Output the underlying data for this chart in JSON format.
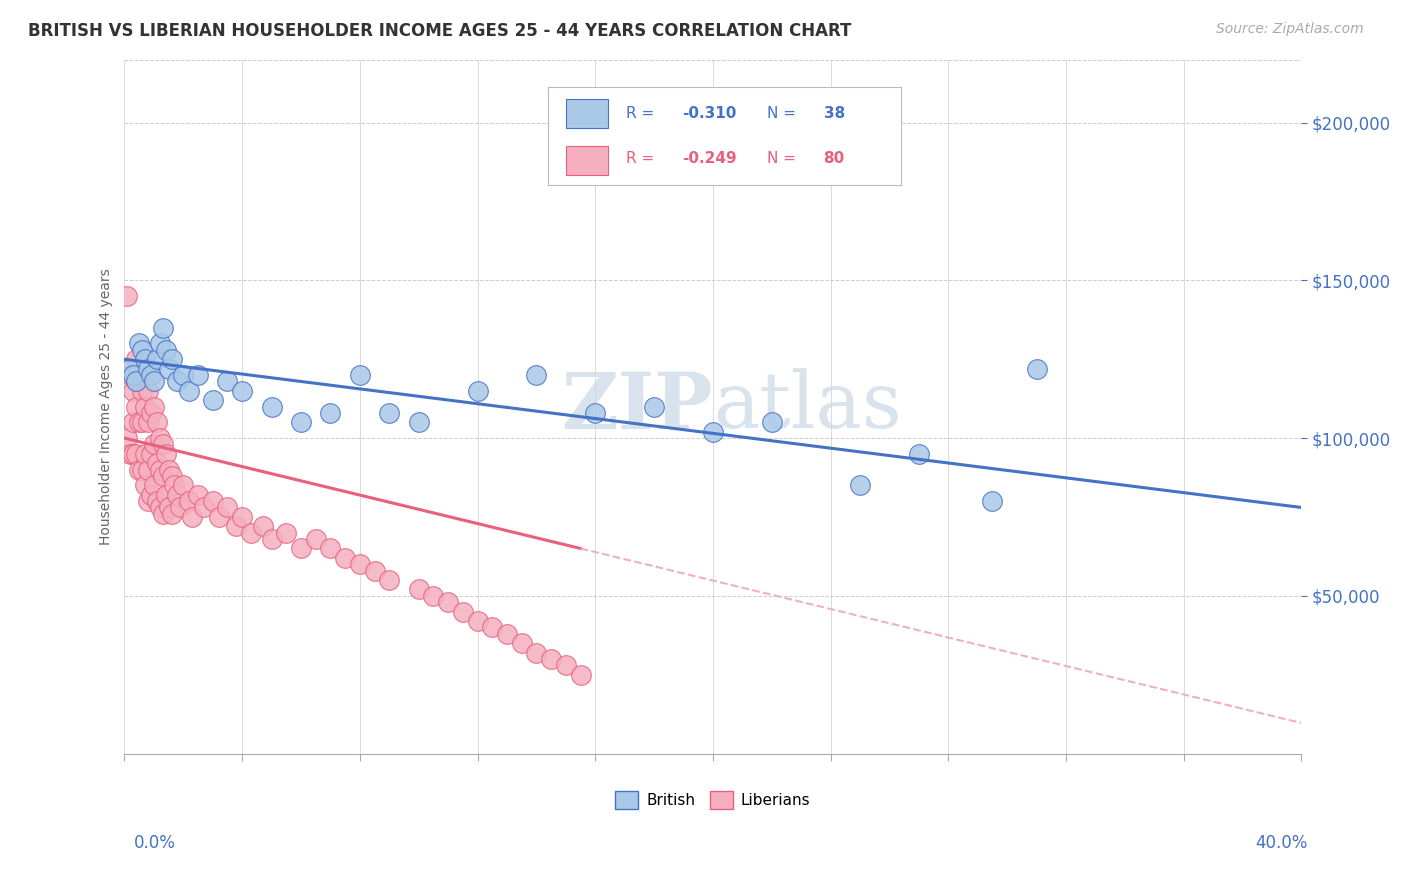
{
  "title": "BRITISH VS LIBERIAN HOUSEHOLDER INCOME AGES 25 - 44 YEARS CORRELATION CHART",
  "source_text": "Source: ZipAtlas.com",
  "ylabel": "Householder Income Ages 25 - 44 years",
  "ytick_labels": [
    "$50,000",
    "$100,000",
    "$150,000",
    "$200,000"
  ],
  "ytick_values": [
    50000,
    100000,
    150000,
    200000
  ],
  "ylim": [
    0,
    220000
  ],
  "xlim": [
    0.0,
    0.4
  ],
  "british_R": "-0.310",
  "british_N": "38",
  "liberian_R": "-0.249",
  "liberian_N": "80",
  "british_color": "#aac8e8",
  "liberian_color": "#f5afc0",
  "british_line_color": "#4472c4",
  "liberian_line_color": "#e8607a",
  "liberian_dash_color": "#f0b0c0",
  "watermark_color": "#c8d8e8",
  "british_x": [
    0.002,
    0.003,
    0.004,
    0.005,
    0.006,
    0.007,
    0.008,
    0.009,
    0.01,
    0.011,
    0.012,
    0.013,
    0.014,
    0.015,
    0.016,
    0.018,
    0.02,
    0.022,
    0.025,
    0.03,
    0.035,
    0.04,
    0.05,
    0.06,
    0.07,
    0.08,
    0.09,
    0.1,
    0.12,
    0.14,
    0.16,
    0.18,
    0.2,
    0.22,
    0.25,
    0.27,
    0.295,
    0.31
  ],
  "british_y": [
    122000,
    120000,
    118000,
    130000,
    128000,
    125000,
    122000,
    120000,
    118000,
    125000,
    130000,
    135000,
    128000,
    122000,
    125000,
    118000,
    120000,
    115000,
    120000,
    112000,
    118000,
    115000,
    110000,
    105000,
    108000,
    120000,
    108000,
    105000,
    115000,
    120000,
    108000,
    110000,
    102000,
    105000,
    85000,
    95000,
    80000,
    122000
  ],
  "liberian_x": [
    0.001,
    0.001,
    0.002,
    0.002,
    0.003,
    0.003,
    0.003,
    0.004,
    0.004,
    0.004,
    0.005,
    0.005,
    0.005,
    0.006,
    0.006,
    0.006,
    0.007,
    0.007,
    0.007,
    0.008,
    0.008,
    0.008,
    0.008,
    0.009,
    0.009,
    0.009,
    0.01,
    0.01,
    0.01,
    0.011,
    0.011,
    0.011,
    0.012,
    0.012,
    0.012,
    0.013,
    0.013,
    0.013,
    0.014,
    0.014,
    0.015,
    0.015,
    0.016,
    0.016,
    0.017,
    0.018,
    0.019,
    0.02,
    0.022,
    0.023,
    0.025,
    0.027,
    0.03,
    0.032,
    0.035,
    0.038,
    0.04,
    0.043,
    0.047,
    0.05,
    0.055,
    0.06,
    0.065,
    0.07,
    0.075,
    0.08,
    0.085,
    0.09,
    0.1,
    0.105,
    0.11,
    0.115,
    0.12,
    0.125,
    0.13,
    0.135,
    0.14,
    0.145,
    0.15,
    0.155
  ],
  "liberian_y": [
    145000,
    100000,
    120000,
    95000,
    115000,
    105000,
    95000,
    125000,
    110000,
    95000,
    120000,
    105000,
    90000,
    115000,
    105000,
    90000,
    110000,
    95000,
    85000,
    115000,
    105000,
    90000,
    80000,
    108000,
    95000,
    82000,
    110000,
    98000,
    85000,
    105000,
    92000,
    80000,
    100000,
    90000,
    78000,
    98000,
    88000,
    76000,
    95000,
    82000,
    90000,
    78000,
    88000,
    76000,
    85000,
    82000,
    78000,
    85000,
    80000,
    75000,
    82000,
    78000,
    80000,
    75000,
    78000,
    72000,
    75000,
    70000,
    72000,
    68000,
    70000,
    65000,
    68000,
    65000,
    62000,
    60000,
    58000,
    55000,
    52000,
    50000,
    48000,
    45000,
    42000,
    40000,
    38000,
    35000,
    32000,
    30000,
    28000,
    25000
  ]
}
